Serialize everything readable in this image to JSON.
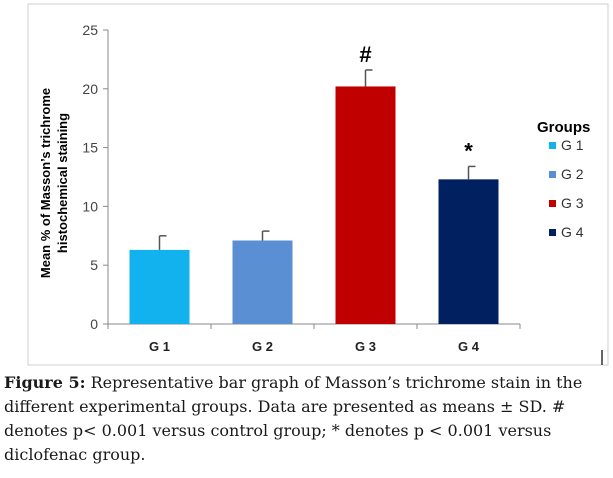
{
  "chart_data": {
    "type": "bar",
    "categories": [
      "G 1",
      "G 2",
      "G 3",
      "G 4"
    ],
    "values": [
      6.3,
      7.1,
      20.2,
      12.3
    ],
    "errors": [
      1.2,
      0.8,
      1.4,
      1.1
    ],
    "annotations": [
      "",
      "",
      "#",
      "*"
    ],
    "colors": [
      "#12b2ee",
      "#5b8fd3",
      "#c00000",
      "#002060"
    ],
    "ylabel": [
      "Mean % of Masson’s trichrome",
      "histochemical staining"
    ],
    "ylim": [
      0,
      25
    ],
    "yticks": [
      0,
      5,
      10,
      15,
      20,
      25
    ],
    "grid": false,
    "legend": {
      "title": "Groups",
      "placement": "right"
    }
  },
  "caption": {
    "label": "Figure 5:",
    "text": " Representative bar graph of Masson’s trichrome stain in the different experimental groups.  Data are presented as means ± SD. # denotes p< 0.001 versus control group; * denotes p < 0.001 versus diclofenac group."
  }
}
